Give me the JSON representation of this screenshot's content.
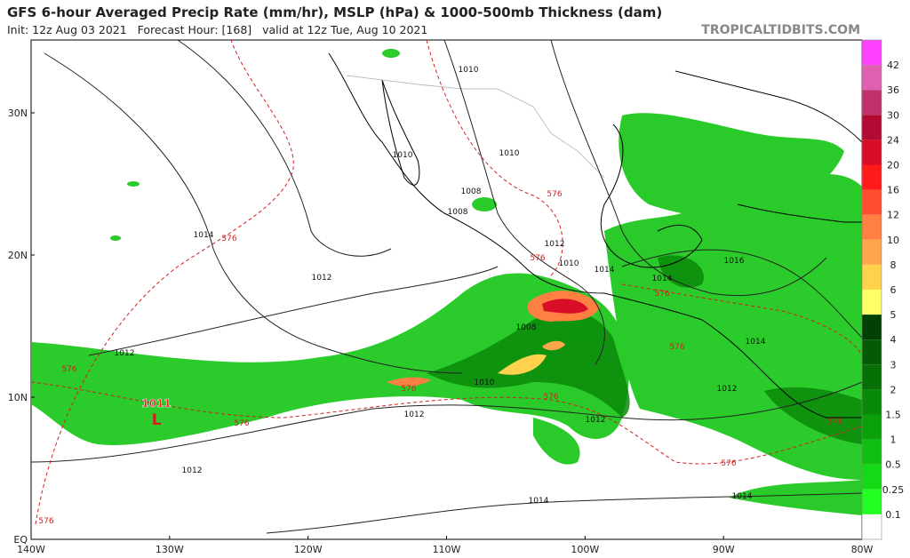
{
  "header": {
    "title": "GFS 6-hour Averaged Precip Rate (mm/hr), MSLP (hPa) & 1000-500mb Thickness (dam)",
    "subtitle": "Init: 12z Aug 03 2021   Forecast Hour: [168]   valid at 12z Tue, Aug 10 2021",
    "source": "TROPICALTIDBITS.COM"
  },
  "map": {
    "lat_labels": [
      "30N",
      "20N",
      "10N",
      "EQ"
    ],
    "lon_labels": [
      "140W",
      "130W",
      "120W",
      "110W",
      "100W",
      "90W",
      "80W"
    ],
    "isobar_labels": [
      "1010",
      "1010",
      "1010",
      "1008",
      "1008",
      "1012",
      "1010",
      "1014",
      "1014",
      "1014",
      "1016",
      "1012",
      "1012",
      "1008",
      "1010",
      "1014",
      "1012",
      "1012",
      "1012",
      "1012",
      "1014",
      "1014"
    ],
    "thickness_labels": [
      "576",
      "576",
      "576",
      "576",
      "576",
      "576",
      "576",
      "576",
      "576",
      "576",
      "576",
      "576"
    ],
    "low": {
      "pressure": "1011",
      "symbol": "L"
    }
  },
  "colorbar": {
    "labels": [
      "42",
      "36",
      "30",
      "24",
      "20",
      "16",
      "12",
      "10",
      "8",
      "6",
      "5",
      "4",
      "3",
      "2",
      "1.5",
      "1",
      "0.5",
      "0.25",
      "0.1"
    ]
  }
}
